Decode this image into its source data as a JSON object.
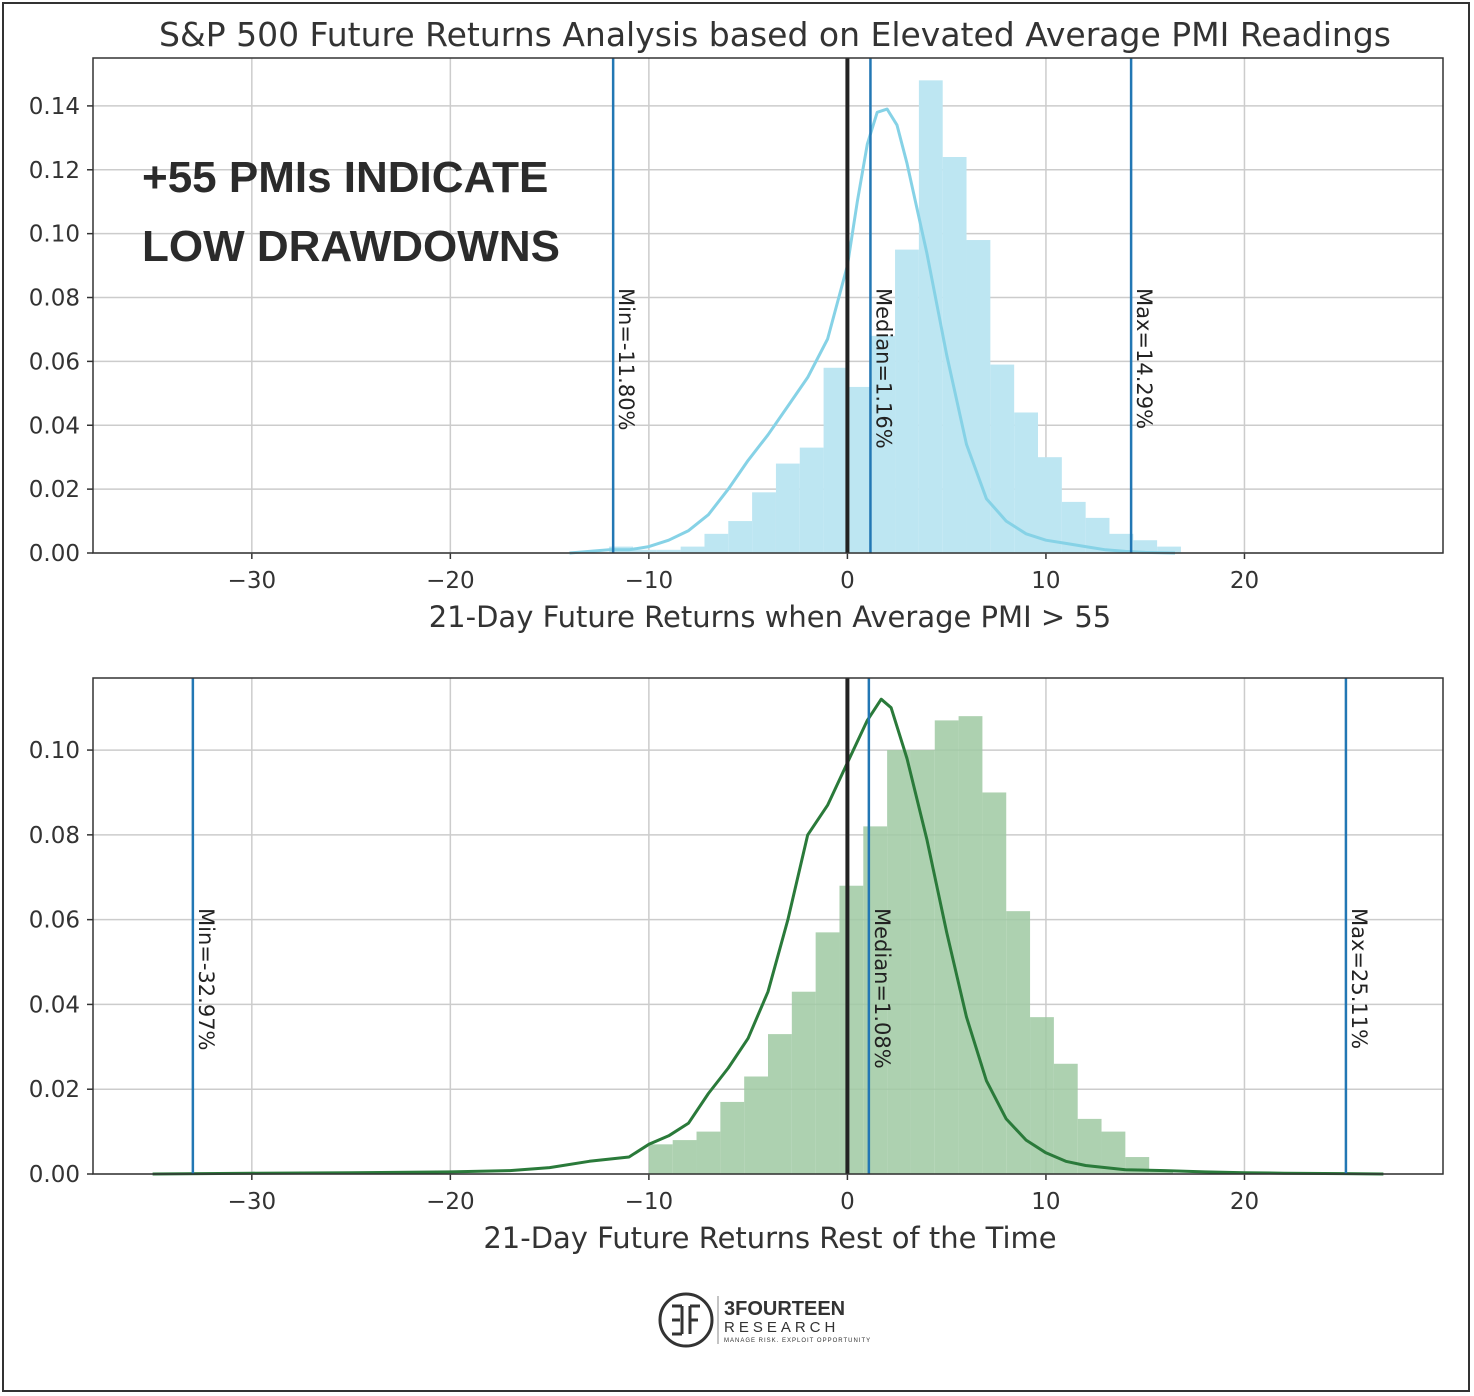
{
  "title": "S&P 500 Future Returns Analysis based on Elevated Average PMI Readings",
  "callout": {
    "line1": "+55 PMIs INDICATE",
    "line2": "LOW DRAWDOWNS"
  },
  "logo": {
    "main": "3FOURTEEN",
    "sub": "RESEARCH",
    "tagline": "MANAGE RISK. EXPLOIT OPPORTUNITY"
  },
  "colors": {
    "top_hist": "#bde6f2",
    "top_kde": "#86d2e6",
    "bottom_hist": "#9fc9a2",
    "bottom_kde": "#2a7a3a",
    "stat_line": "#2277b4",
    "zero_line": "#222222"
  },
  "chart_data": [
    {
      "type": "histogram",
      "xlabel": "21-Day Future Returns when Average PMI > 55",
      "ylabel": "",
      "xlim": [
        -38,
        30
      ],
      "ylim": [
        0,
        0.155
      ],
      "xticks": [
        -30,
        -20,
        -10,
        0,
        10,
        20
      ],
      "xtick_labels": [
        "−30",
        "−20",
        "−10",
        "0",
        "10",
        "20"
      ],
      "yticks": [
        0,
        0.02,
        0.04,
        0.06,
        0.08,
        0.1,
        0.12,
        0.14
      ],
      "ytick_labels": [
        "0.00",
        "0.02",
        "0.04",
        "0.06",
        "0.08",
        "0.10",
        "0.12",
        "0.14"
      ],
      "grid": true,
      "bins": {
        "start": -12.0,
        "width": 1.2,
        "heights": [
          0.002,
          0.001,
          0.001,
          0.002,
          0.006,
          0.01,
          0.019,
          0.028,
          0.033,
          0.058,
          0.052,
          0.068,
          0.095,
          0.148,
          0.124,
          0.098,
          0.059,
          0.044,
          0.03,
          0.016,
          0.011,
          0.006,
          0.004,
          0.002
        ]
      },
      "kde": {
        "x": [
          -14,
          -12,
          -11,
          -10,
          -9,
          -8,
          -7,
          -6,
          -5,
          -4,
          -3,
          -2,
          -1,
          0,
          0.5,
          1,
          1.5,
          2,
          2.5,
          3,
          4,
          5,
          6,
          7,
          8,
          9,
          10,
          11,
          12,
          13,
          14,
          15,
          16.5
        ],
        "y": [
          0,
          0.001,
          0.001,
          0.002,
          0.004,
          0.007,
          0.012,
          0.02,
          0.029,
          0.037,
          0.046,
          0.055,
          0.067,
          0.09,
          0.11,
          0.128,
          0.138,
          0.139,
          0.134,
          0.122,
          0.094,
          0.062,
          0.034,
          0.017,
          0.01,
          0.006,
          0.004,
          0.003,
          0.002,
          0.001,
          0.0005,
          0.0002,
          0
        ]
      },
      "vlines": [
        {
          "x": -11.8,
          "label": "Min=-11.80%"
        },
        {
          "x": 1.16,
          "label": "Median=1.16%"
        },
        {
          "x": 14.29,
          "label": "Max=14.29%"
        }
      ],
      "zero_line": 0
    },
    {
      "type": "histogram",
      "xlabel": "21-Day Future Returns Rest of the Time",
      "ylabel": "",
      "xlim": [
        -38,
        30
      ],
      "ylim": [
        0,
        0.117
      ],
      "xticks": [
        -30,
        -20,
        -10,
        0,
        10,
        20
      ],
      "xtick_labels": [
        "−30",
        "−20",
        "−10",
        "0",
        "10",
        "20"
      ],
      "yticks": [
        0,
        0.02,
        0.04,
        0.06,
        0.08,
        0.1
      ],
      "ytick_labels": [
        "0.00",
        "0.02",
        "0.04",
        "0.06",
        "0.08",
        "0.10"
      ],
      "grid": true,
      "bins": {
        "start": -10.0,
        "width": 1.2,
        "heights": [
          0.007,
          0.008,
          0.01,
          0.017,
          0.023,
          0.033,
          0.043,
          0.057,
          0.068,
          0.082,
          0.1,
          0.1,
          0.107,
          0.108,
          0.09,
          0.062,
          0.037,
          0.026,
          0.013,
          0.01,
          0.004,
          0.001
        ]
      },
      "kde": {
        "x": [
          -35,
          -30,
          -25,
          -20,
          -17,
          -15,
          -13,
          -11,
          -10,
          -9,
          -8,
          -7,
          -6,
          -5,
          -4,
          -3,
          -2,
          -1,
          0,
          1,
          1.7,
          2.2,
          3,
          4,
          5,
          6,
          7,
          8,
          9,
          10,
          11,
          12,
          14,
          16,
          18,
          20,
          22,
          25,
          27
        ],
        "y": [
          0,
          0.0002,
          0.0003,
          0.0005,
          0.0008,
          0.0015,
          0.003,
          0.004,
          0.007,
          0.009,
          0.012,
          0.019,
          0.025,
          0.032,
          0.043,
          0.06,
          0.08,
          0.087,
          0.097,
          0.107,
          0.112,
          0.11,
          0.098,
          0.079,
          0.057,
          0.037,
          0.022,
          0.013,
          0.008,
          0.005,
          0.003,
          0.002,
          0.001,
          0.0008,
          0.0005,
          0.0003,
          0.0002,
          0.0001,
          0
        ]
      },
      "vlines": [
        {
          "x": -32.97,
          "label": "Min=-32.97%"
        },
        {
          "x": 1.08,
          "label": "Median=1.08%"
        },
        {
          "x": 25.11,
          "label": "Max=25.11%"
        }
      ],
      "zero_line": 0
    }
  ]
}
